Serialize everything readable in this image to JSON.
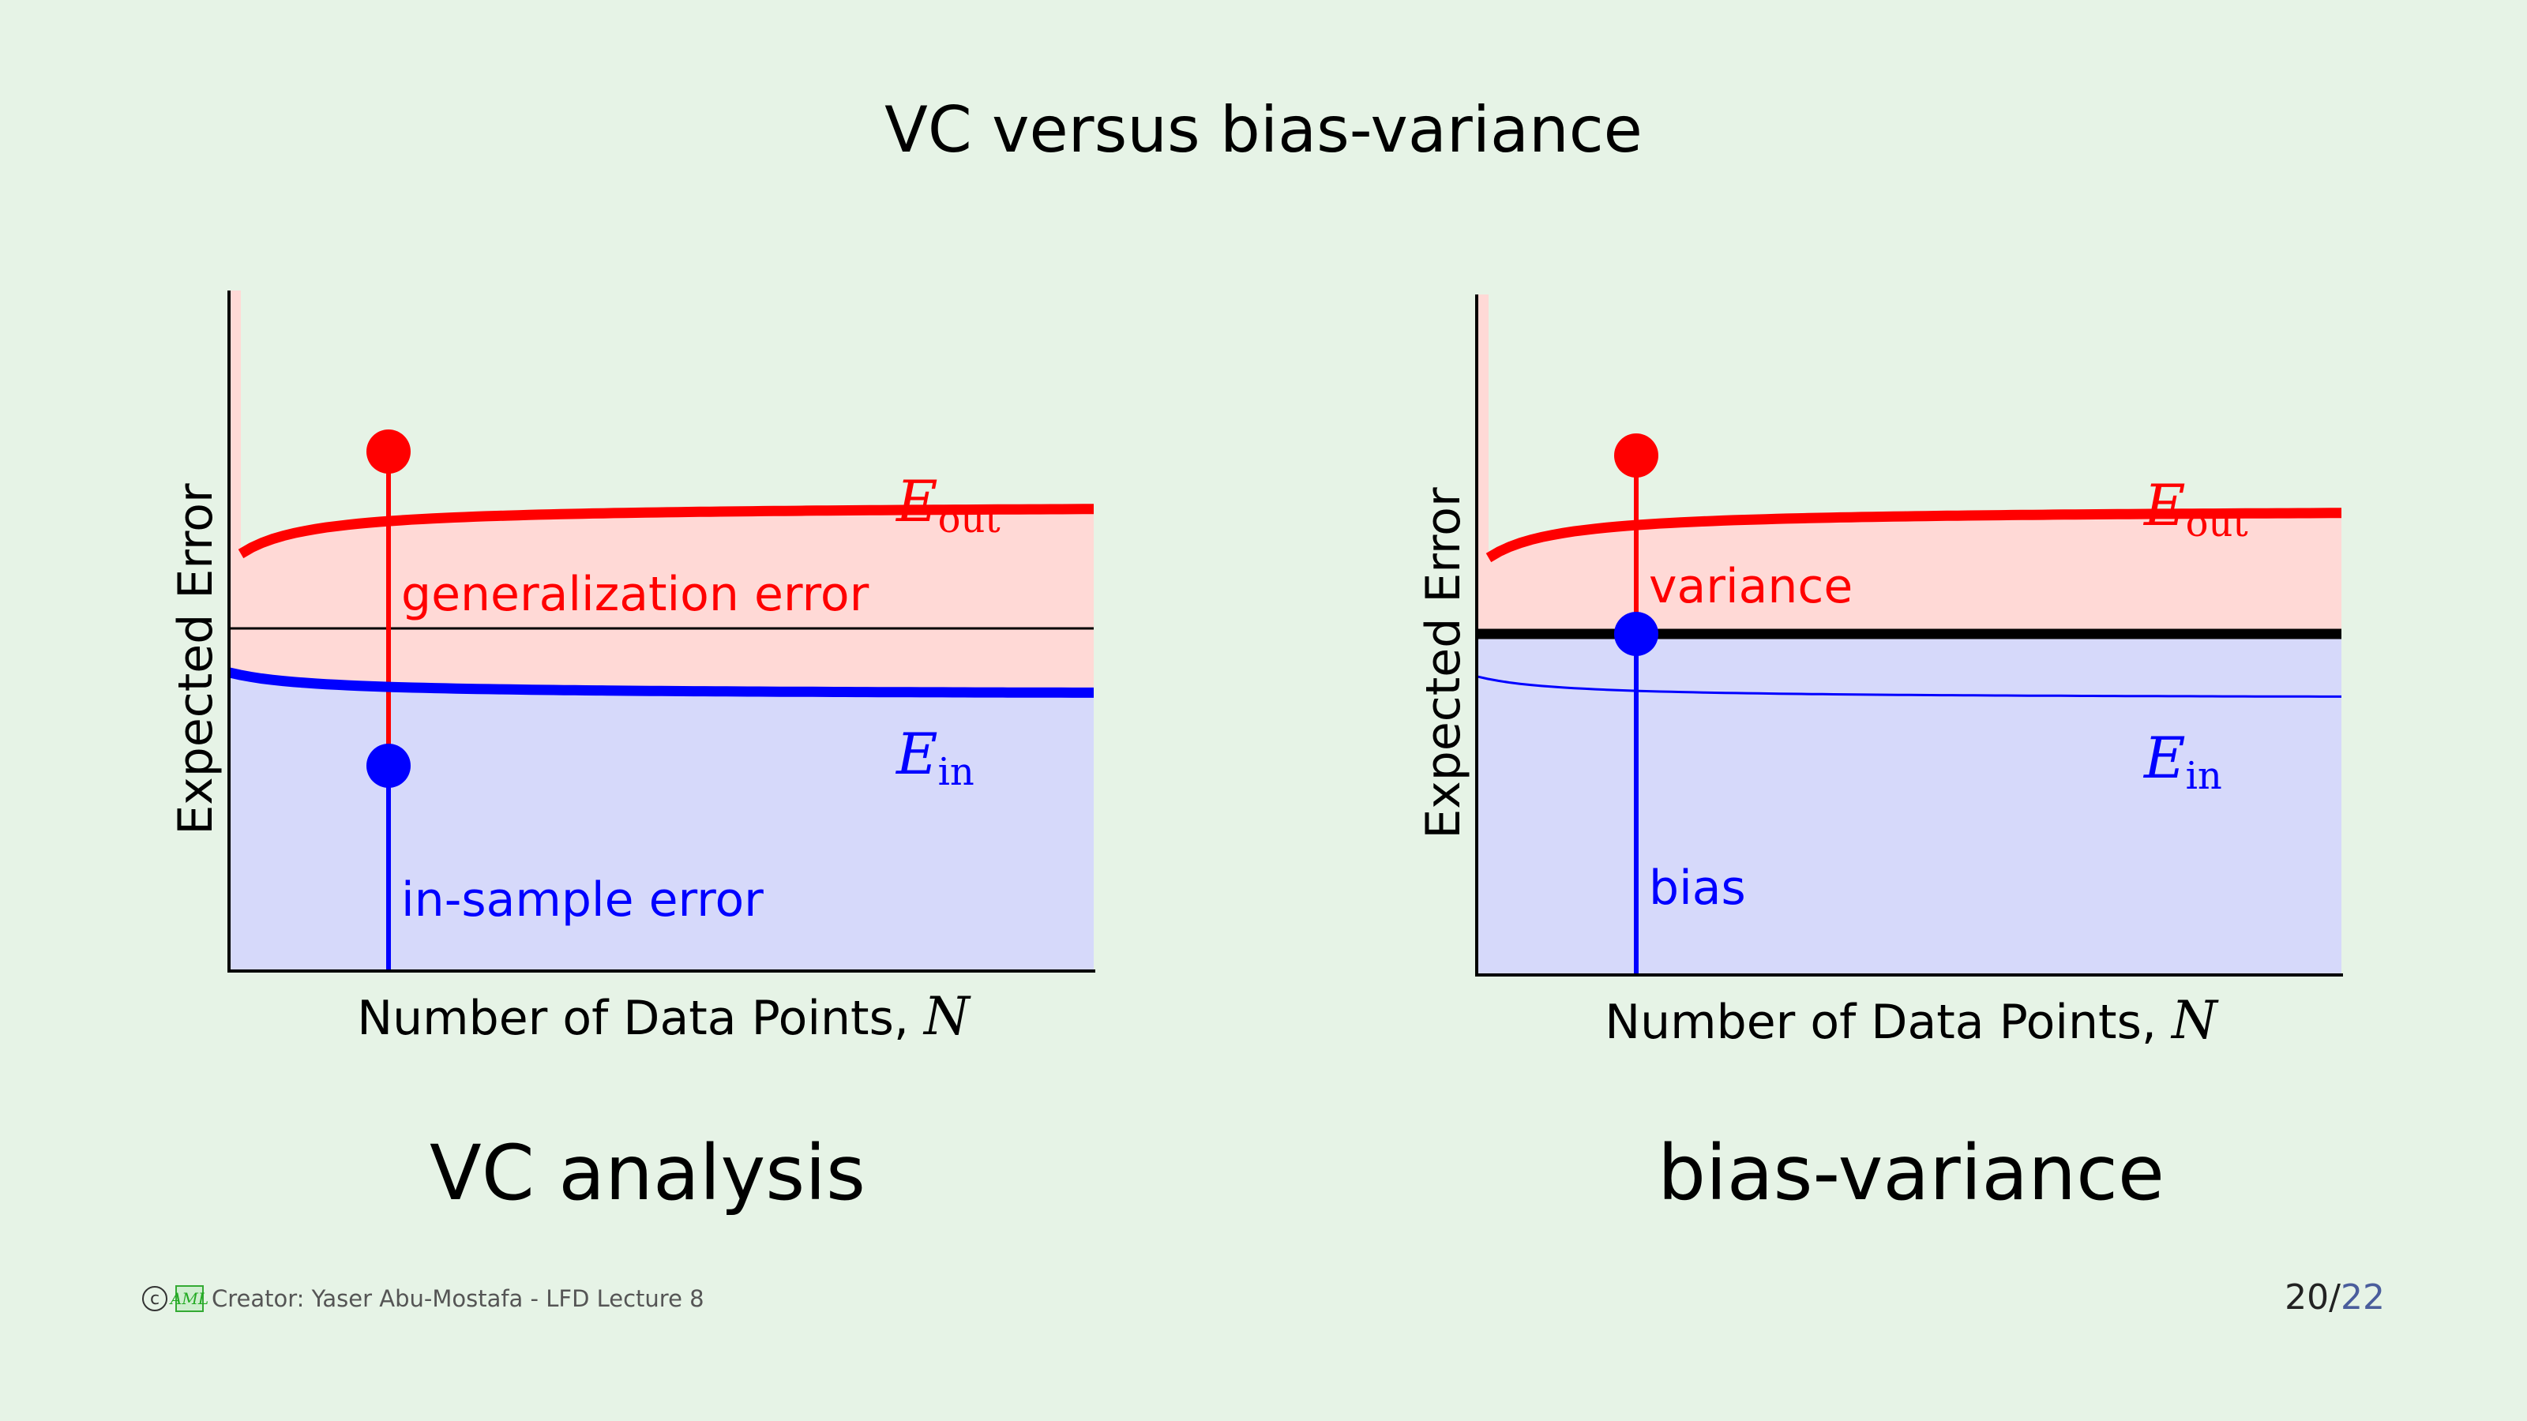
{
  "title": "VC versus bias-variance",
  "panels": [
    {
      "caption": "VC analysis",
      "ylabel": "Expected Error",
      "xlabel_text": "Number of Data Points, ",
      "xlabel_var": "N",
      "eout_label": "E",
      "eout_sub": "out",
      "ein_label": "E",
      "ein_sub": "in",
      "upper_annotation": "generalization error",
      "lower_annotation": "in-sample error"
    },
    {
      "caption": "bias-variance",
      "ylabel": "Expected Error",
      "xlabel_text": "Number of Data Points, ",
      "xlabel_var": "N",
      "eout_label": "E",
      "eout_sub": "out",
      "ein_label": "E",
      "ein_sub": "in",
      "upper_annotation": "variance",
      "lower_annotation": "bias"
    }
  ],
  "footer": {
    "copyright_symbol": "c",
    "logo_text": "AML",
    "credit": "Creator: Yaser Abu-Mostafa - LFD Lecture 8"
  },
  "page": {
    "current": "20",
    "total": "22"
  },
  "colors": {
    "background": "#e6f3e6",
    "eout": "#ff0000",
    "ein": "#0000ff",
    "eout_fill": "#ffd9d6",
    "ein_fill": "#d6d9fa"
  }
}
